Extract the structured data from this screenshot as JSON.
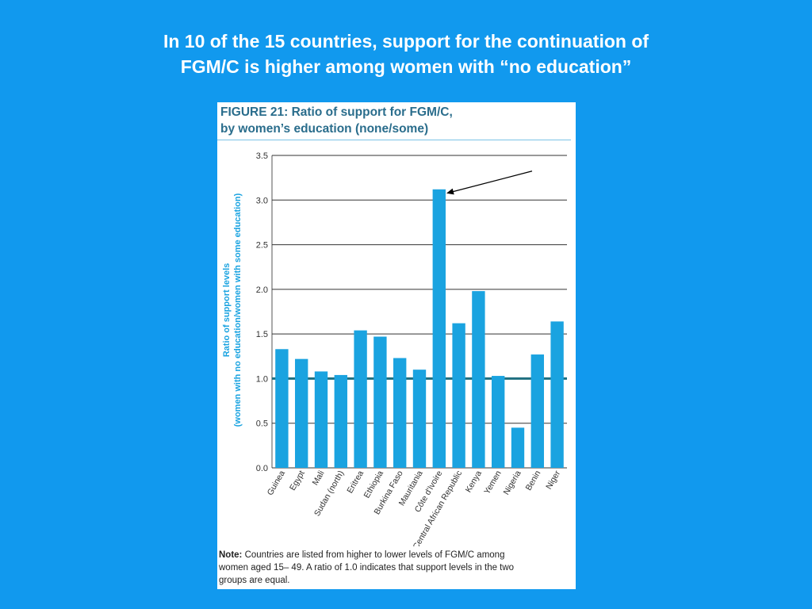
{
  "slide": {
    "title_line1": "In 10 of the 15 countries, support for the continuation of",
    "title_line2": "FGM/C is higher among women with “no education”"
  },
  "figure": {
    "title_line1": "FIGURE 21: Ratio of support for FGM/C,",
    "title_line2": "by women’s education (none/some)",
    "note_label": "Note:",
    "note_line1": " Countries are listed from higher to lower levels of FGM/C among",
    "note_line2": "women aged 15– 49. A ratio of 1.0 indicates that support levels in the two",
    "note_line3": "groups are equal."
  },
  "chart_data": {
    "type": "bar",
    "ylabel_line1": "Ratio of support levels",
    "ylabel_line2": "(women with no education/women with some education)",
    "categories": [
      "Guinea",
      "Egypt",
      "Mali",
      "Sudan (north)",
      "Eritrea",
      "Ethiopia",
      "Burkina Faso",
      "Mauritania",
      "Côte d'Ivoire",
      "Central African Republic",
      "Kenya",
      "Yemen",
      "Nigeria",
      "Benin",
      "Niger"
    ],
    "values": [
      1.33,
      1.22,
      1.08,
      1.04,
      1.54,
      1.47,
      1.23,
      1.1,
      3.12,
      1.62,
      1.98,
      1.03,
      0.45,
      1.27,
      1.64
    ],
    "ylim": [
      0,
      3.5
    ],
    "yticks": [
      "0.0",
      "0.5",
      "1.0",
      "1.5",
      "2.0",
      "2.5",
      "3.0",
      "3.5"
    ],
    "reference_line": 1.0,
    "bar_color": "#1aa3e0",
    "reference_line_color": "#1f6f80",
    "annotation": {
      "type": "arrow",
      "target_category": "Côte d'Ivoire"
    },
    "grid": true
  }
}
